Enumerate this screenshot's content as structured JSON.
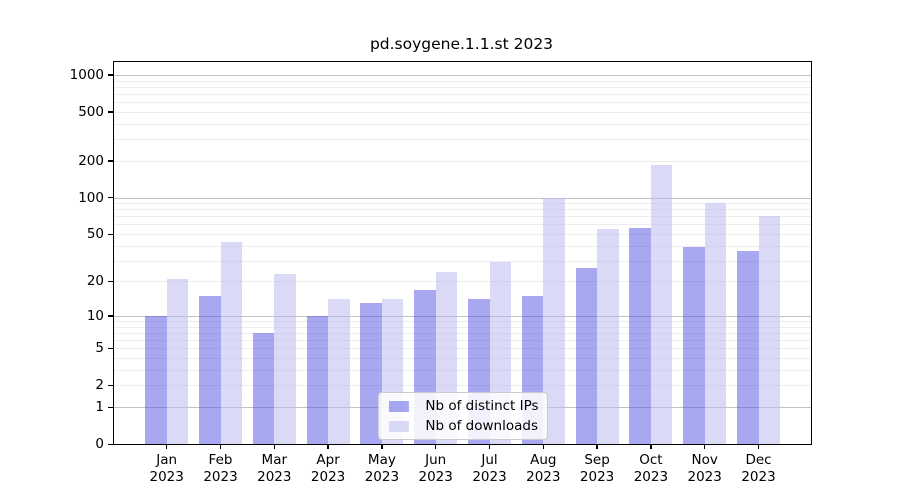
{
  "chart_data": {
    "type": "bar",
    "title": "pd.soygene.1.1.st 2023",
    "categories": [
      "Jan",
      "Feb",
      "Mar",
      "Apr",
      "May",
      "Jun",
      "Jul",
      "Aug",
      "Sep",
      "Oct",
      "Nov",
      "Dec"
    ],
    "category_year": "2023",
    "series": [
      {
        "name": "Nb of distinct IPs",
        "color": "rgba(81,81,225,0.5)",
        "color_hex_on_white": "#a8a8f0",
        "values": [
          10,
          15,
          7,
          10,
          13,
          17,
          14,
          15,
          26,
          56,
          39,
          36
        ]
      },
      {
        "name": "Nb of downloads",
        "color": "rgba(187,187,240,0.55)",
        "color_hex_on_white": "#d8d8f6",
        "values": [
          21,
          43,
          23,
          14,
          14,
          24,
          29,
          100,
          55,
          185,
          90,
          71
        ]
      }
    ],
    "yscale": "log10(1+y)",
    "ylim": [
      0,
      1200
    ],
    "yticks": [
      0,
      1,
      2,
      5,
      10,
      20,
      50,
      100,
      200,
      500,
      1000
    ],
    "grid": {
      "major_values": [
        1,
        10,
        100,
        1000
      ],
      "minor_values": [
        2,
        3,
        4,
        5,
        6,
        7,
        8,
        9,
        20,
        30,
        40,
        50,
        60,
        70,
        80,
        90,
        200,
        300,
        400,
        500,
        600,
        700,
        800,
        900
      ],
      "major_color": "#c2c2c2",
      "minor_color": "#ededed",
      "grid_on": true
    },
    "legend": {
      "position": "lower center",
      "entries": [
        "Nb of distinct IPs",
        "Nb of downloads"
      ]
    },
    "xlabel": "",
    "ylabel": ""
  }
}
